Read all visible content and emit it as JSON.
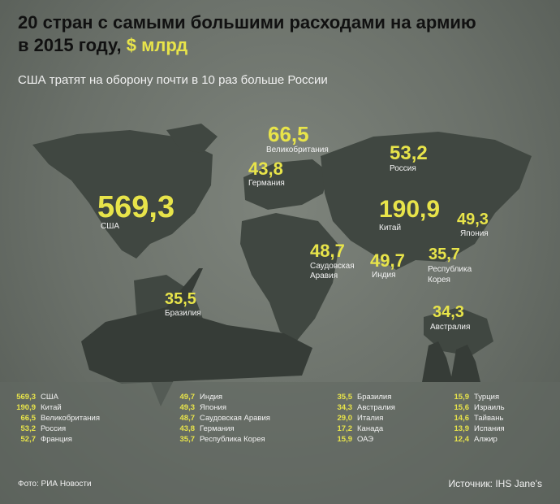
{
  "title_line1": "20 стран с самыми большими расходами на армию",
  "title_line2": "в 2015 году,",
  "title_highlight": "$ млрд",
  "subtitle": "США тратят на оборону почти в 10 раз больше России",
  "map_labels": {
    "usa": {
      "value": "569,3",
      "name": "США"
    },
    "uk": {
      "value": "66,5",
      "name": "Великобритания"
    },
    "germany": {
      "value": "43,8",
      "name": "Германия"
    },
    "russia": {
      "value": "53,2",
      "name": "Россия"
    },
    "china": {
      "value": "190,9",
      "name": "Китай"
    },
    "japan": {
      "value": "49,3",
      "name": "Япония"
    },
    "saudi": {
      "value": "48,7",
      "name1": "Саудовская",
      "name2": "Аравия"
    },
    "india": {
      "value": "49,7",
      "name": "Индия"
    },
    "korea": {
      "value": "35,7",
      "name1": "Республика",
      "name2": "Корея"
    },
    "brazil": {
      "value": "35,5",
      "name": "Бразилия"
    },
    "australia": {
      "value": "34,3",
      "name": "Австралия"
    }
  },
  "table": [
    [
      {
        "v": "569,3",
        "c": "США"
      },
      {
        "v": "190,9",
        "c": "Китай"
      },
      {
        "v": "66,5",
        "c": "Великобритания"
      },
      {
        "v": "53,2",
        "c": "Россия"
      },
      {
        "v": "52,7",
        "c": "Франция"
      }
    ],
    [
      {
        "v": "49,7",
        "c": "Индия"
      },
      {
        "v": "49,3",
        "c": "Япония"
      },
      {
        "v": "48,7",
        "c": "Саудовская Аравия"
      },
      {
        "v": "43,8",
        "c": "Германия"
      },
      {
        "v": "35,7",
        "c": "Республика Корея"
      }
    ],
    [
      {
        "v": "35,5",
        "c": "Бразилия"
      },
      {
        "v": "34,3",
        "c": "Австралия"
      },
      {
        "v": "29,0",
        "c": "Италия"
      },
      {
        "v": "17,2",
        "c": "Канада"
      },
      {
        "v": "15,9",
        "c": "ОАЭ"
      }
    ],
    [
      {
        "v": "15,9",
        "c": "Турция"
      },
      {
        "v": "15,6",
        "c": "Израиль"
      },
      {
        "v": "14,6",
        "c": "Тайвань"
      },
      {
        "v": "13,9",
        "c": "Испания"
      },
      {
        "v": "12,4",
        "c": "Алжир"
      }
    ]
  ],
  "photo_credit": "Фото: РИА Новости",
  "source": "Источник: IHS Jane's"
}
